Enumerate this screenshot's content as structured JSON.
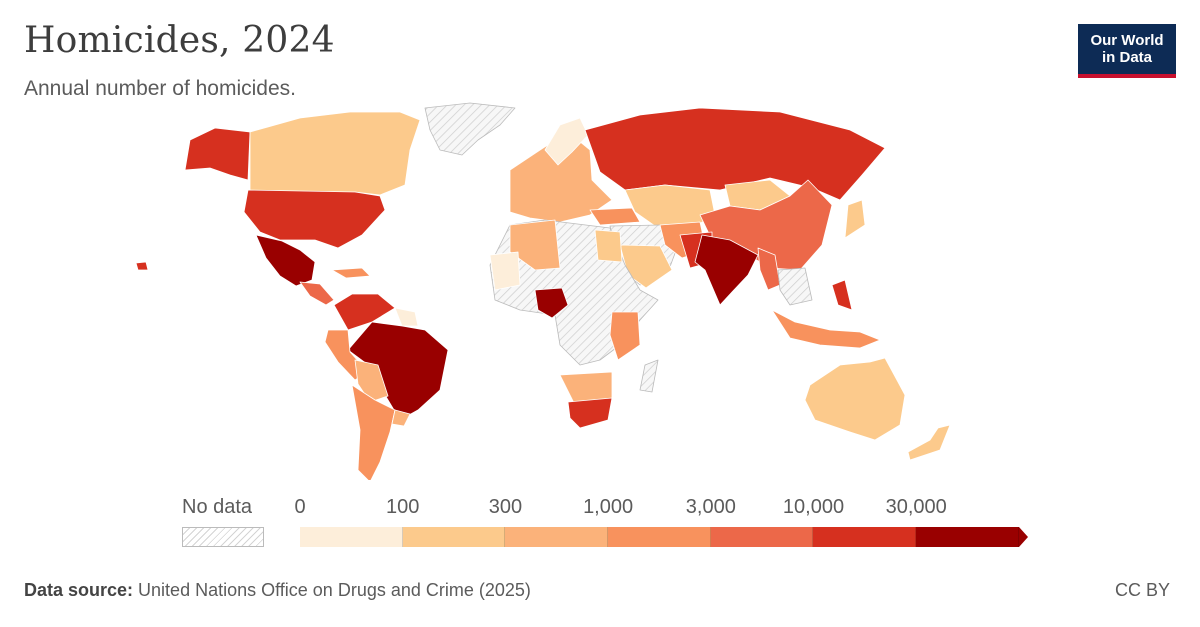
{
  "title": "Homicides, 2024",
  "subtitle": "Annual number of homicides.",
  "logo": {
    "line1": "Our World",
    "line2": "in Data"
  },
  "legend": {
    "no_data_label": "No data",
    "ticks": [
      "0",
      "100",
      "300",
      "1,000",
      "3,000",
      "10,000",
      "30,000"
    ],
    "colors": [
      "#fdeeda",
      "#fcca8c",
      "#fbb27a",
      "#f8925d",
      "#ec6849",
      "#d6301f",
      "#990000"
    ]
  },
  "footer": {
    "source_label": "Data source:",
    "source_text": " United Nations Office on Drugs and Crime (2025)",
    "license": "CC BY"
  }
}
